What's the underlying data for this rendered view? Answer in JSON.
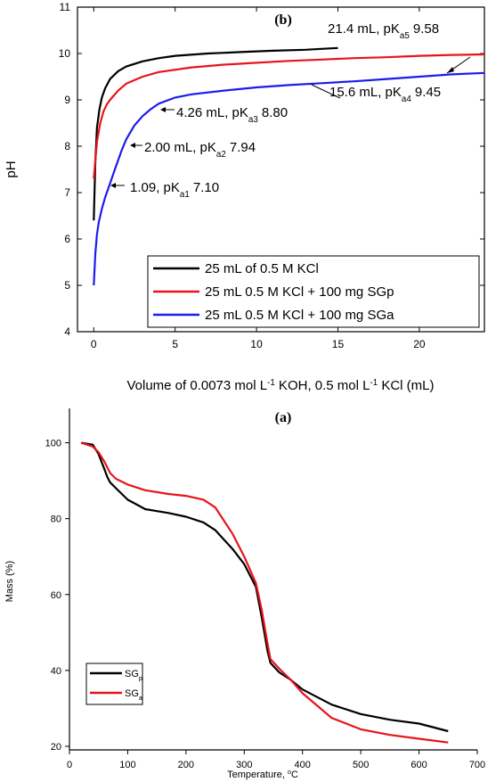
{
  "chart_data": [
    {
      "type": "line",
      "panel_label": "(b)",
      "ylabel": "pH",
      "xlabel_parts": [
        "Volume of 0.0073 mol L",
        "-1",
        " KOH, 0.5 mol L",
        "-1",
        " KCl (mL)"
      ],
      "xlim": [
        -1,
        24
      ],
      "ylim": [
        4,
        11
      ],
      "xticks": [
        "0",
        "5",
        "10",
        "15",
        "20"
      ],
      "xtick_values": [
        0,
        5,
        10,
        15,
        20
      ],
      "yticks": [
        "4",
        "5",
        "6",
        "7",
        "8",
        "9",
        "10",
        "11"
      ],
      "ytick_values": [
        4,
        5,
        6,
        7,
        8,
        9,
        10,
        11
      ],
      "legend_position": "bottom-right",
      "series": [
        {
          "name": "25 mL of 0.5 M KCl",
          "color": "#000000",
          "x": [
            0,
            0.1,
            0.2,
            0.35,
            0.5,
            0.7,
            1.0,
            1.5,
            2,
            3,
            4,
            5,
            7,
            9,
            11,
            13,
            15
          ],
          "y": [
            6.4,
            7.7,
            8.4,
            8.8,
            9.05,
            9.25,
            9.45,
            9.62,
            9.72,
            9.83,
            9.9,
            9.95,
            10.0,
            10.03,
            10.06,
            10.08,
            10.12
          ]
        },
        {
          "name": "25 mL 0.5 M KCl + 100 mg SGp",
          "color": "#e8141b",
          "x": [
            0,
            0.2,
            0.4,
            0.6,
            0.8,
            1.0,
            1.5,
            2,
            3,
            4,
            6,
            8,
            10,
            12,
            14,
            16,
            18,
            20,
            22,
            24
          ],
          "y": [
            7.3,
            8.1,
            8.5,
            8.75,
            8.9,
            9.0,
            9.2,
            9.35,
            9.5,
            9.6,
            9.7,
            9.76,
            9.8,
            9.84,
            9.87,
            9.9,
            9.92,
            9.95,
            9.97,
            9.98
          ]
        },
        {
          "name": "25 mL 0.5 M KCl + 100 mg SGa",
          "color": "#1c1cf0",
          "x": [
            0,
            0.1,
            0.2,
            0.3,
            0.5,
            0.7,
            1.0,
            1.3,
            1.7,
            2.0,
            2.5,
            3.0,
            3.5,
            4.0,
            5,
            6,
            8,
            10,
            12,
            14,
            16,
            18,
            20,
            22,
            24
          ],
          "y": [
            5.0,
            5.7,
            6.1,
            6.35,
            6.65,
            6.9,
            7.2,
            7.5,
            7.9,
            8.15,
            8.45,
            8.65,
            8.8,
            8.92,
            9.05,
            9.12,
            9.2,
            9.27,
            9.32,
            9.36,
            9.4,
            9.45,
            9.5,
            9.55,
            9.58
          ]
        }
      ],
      "annotations": [
        {
          "parts": [
            "21.4 mL, pK",
            "a5",
            " 9.58"
          ]
        },
        {
          "parts": [
            "15.6 mL, pK",
            "a4",
            " 9.45"
          ]
        },
        {
          "parts": [
            "4.26 mL, pK",
            "a3",
            " 8.80"
          ]
        },
        {
          "parts": [
            "2.00 mL, pK",
            "a2",
            " 7.94"
          ]
        },
        {
          "parts": [
            "1.09, pK",
            "a1",
            " 7.10"
          ]
        }
      ]
    },
    {
      "type": "line",
      "panel_label": "(a)",
      "ylabel": "Mass (%)",
      "xlabel_parts": [
        "Temperature, ",
        "o",
        "C"
      ],
      "xlim": [
        0,
        700
      ],
      "ylim": [
        20,
        110
      ],
      "xticks": [
        "0",
        "100",
        "200",
        "300",
        "400",
        "500",
        "600",
        "700"
      ],
      "xtick_values": [
        0,
        100,
        200,
        300,
        400,
        500,
        600,
        700
      ],
      "yticks": [
        "20",
        "40",
        "60",
        "80",
        "100"
      ],
      "ytick_values": [
        20,
        40,
        60,
        80,
        100
      ],
      "legend_position": "bottom-left",
      "series": [
        {
          "name_parts": [
            "SG",
            "p"
          ],
          "color": "#000000",
          "x": [
            20,
            40,
            50,
            60,
            65,
            70,
            80,
            100,
            130,
            170,
            200,
            230,
            250,
            280,
            300,
            320,
            330,
            340,
            345,
            360,
            380,
            400,
            450,
            500,
            550,
            600,
            650
          ],
          "y": [
            100,
            99.5,
            97,
            93,
            91,
            89.5,
            88,
            85,
            82.5,
            81.5,
            80.5,
            79,
            77,
            72,
            68,
            62,
            54,
            45,
            42,
            39.5,
            37.5,
            35,
            31,
            28.5,
            27,
            26,
            24
          ]
        },
        {
          "name_parts": [
            "SG",
            "a"
          ],
          "color": "#e8141b",
          "x": [
            20,
            40,
            50,
            60,
            65,
            70,
            80,
            100,
            130,
            170,
            200,
            230,
            250,
            280,
            300,
            320,
            330,
            340,
            345,
            360,
            380,
            400,
            450,
            500,
            550,
            600,
            650
          ],
          "y": [
            100,
            99,
            97.5,
            95,
            93.5,
            92,
            90.5,
            89,
            87.5,
            86.5,
            86,
            85,
            83,
            76,
            70,
            63,
            56,
            47,
            43,
            40.5,
            37.5,
            34,
            27.5,
            24.5,
            23,
            22,
            21
          ]
        }
      ]
    }
  ]
}
